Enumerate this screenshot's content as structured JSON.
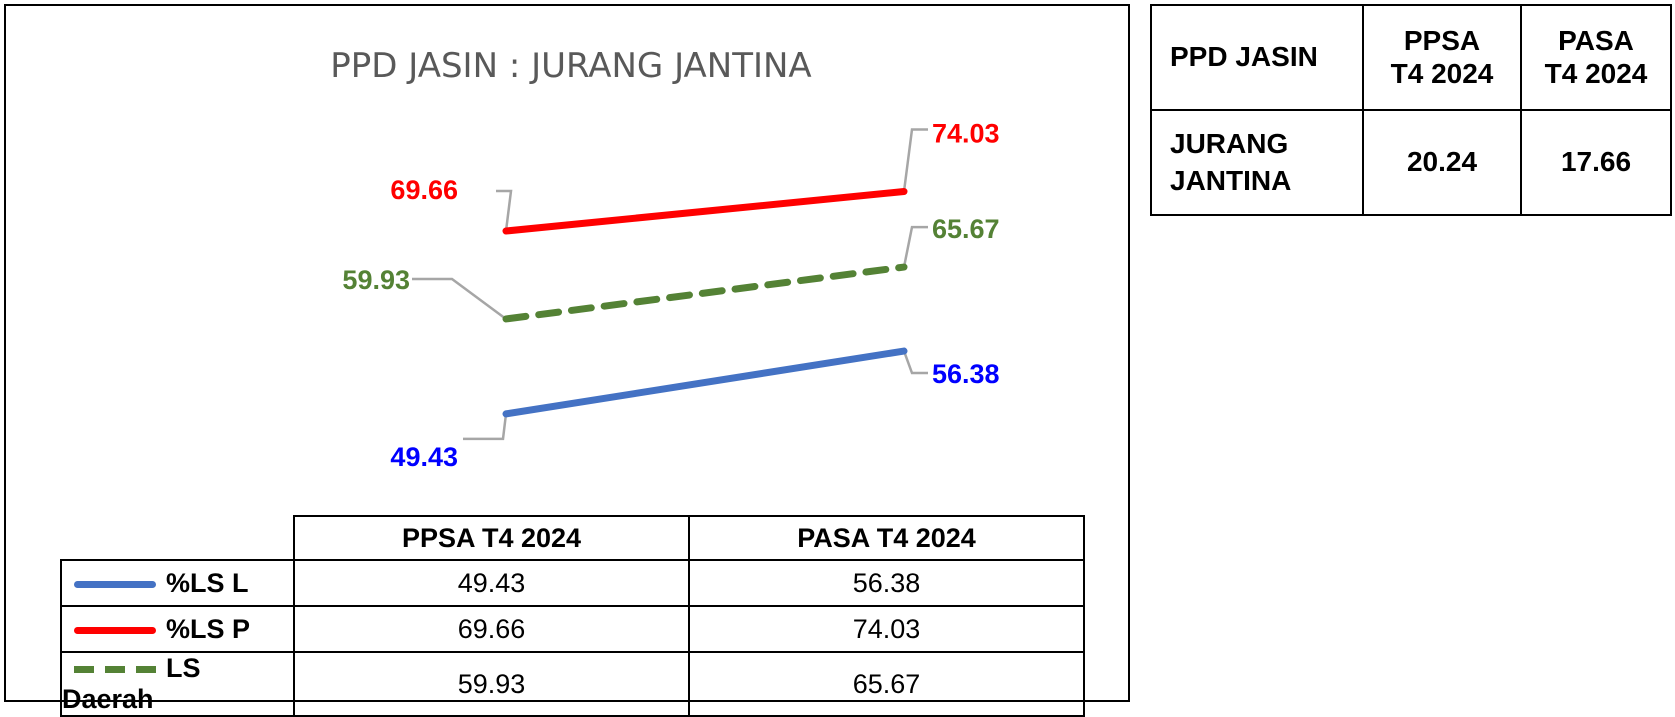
{
  "chart_data": {
    "type": "line",
    "title": "PPD JASIN : JURANG JANTINA",
    "categories": [
      "PPSA T4 2024",
      "PASA T4 2024"
    ],
    "series": [
      {
        "name": "%LS L",
        "values": [
          49.43,
          56.38
        ],
        "labels": [
          "49.43",
          "56.38"
        ],
        "color": "#4472C4",
        "dash": false
      },
      {
        "name": "%LS P",
        "values": [
          69.66,
          74.03
        ],
        "labels": [
          "69.66",
          "74.03"
        ],
        "color": "#FF0000",
        "dash": false
      },
      {
        "name": "LS Daerah",
        "values": [
          59.93,
          65.67
        ],
        "labels": [
          "59.93",
          "65.67"
        ],
        "color": "#548235",
        "dash": true
      }
    ],
    "label_colors": {
      "%LS L": "#0000FF",
      "%LS P": "#FF0000",
      "LS Daerah": "#548235"
    },
    "grid": false,
    "legend": "data table below chart"
  },
  "gap_table": {
    "header": [
      "PPD JASIN",
      "PPSA\nT4 2024",
      "PASA\nT4 2024"
    ],
    "row": {
      "label": "JURANG\nJANTINA",
      "values": [
        "20.24",
        "17.66"
      ]
    }
  }
}
